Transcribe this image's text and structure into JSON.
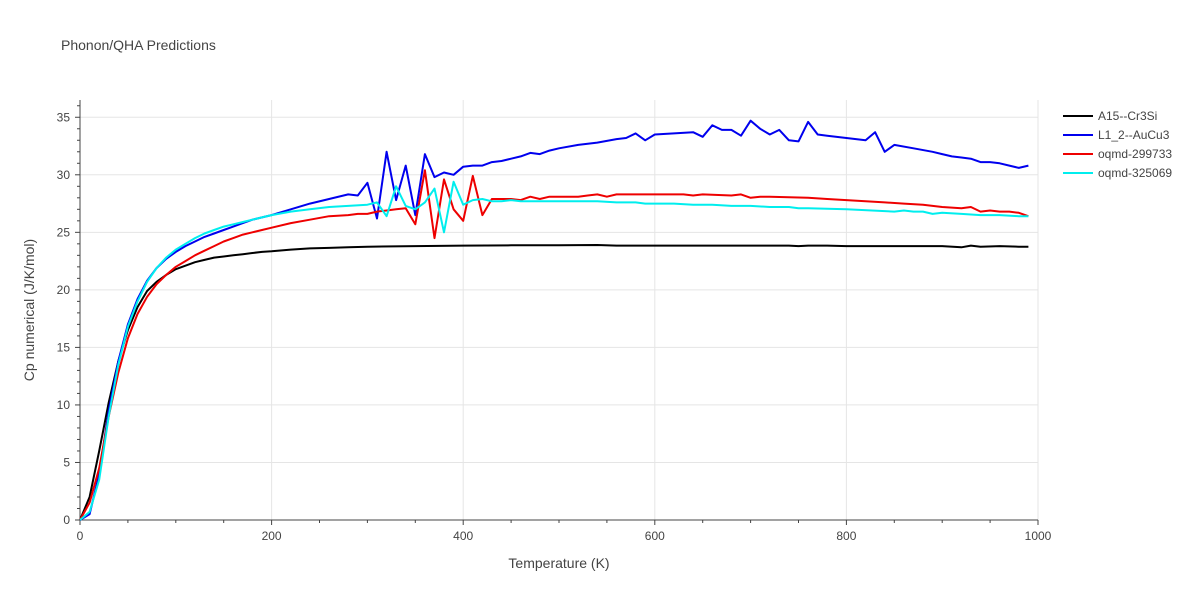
{
  "chart_data": {
    "type": "line",
    "title": "Phonon/QHA Predictions",
    "xlabel": "Temperature (K)",
    "ylabel": "Cp numerical (J/K/mol)",
    "xlim": [
      0,
      1000
    ],
    "ylim": [
      0,
      36.5
    ],
    "xticks": [
      0,
      200,
      400,
      600,
      800,
      1000
    ],
    "xtick_labels": [
      "0",
      "200",
      "400",
      "600",
      "800",
      "1000"
    ],
    "yticks": [
      0,
      5,
      10,
      15,
      20,
      25,
      30,
      35
    ],
    "ytick_labels": [
      "0",
      "5",
      "10",
      "15",
      "20",
      "25",
      "30",
      "35"
    ],
    "grid": true,
    "legend_position": "top-right",
    "series": [
      {
        "name": "A15--Cr3Si",
        "color": "#000000",
        "x": [
          0,
          10,
          20,
          30,
          40,
          50,
          60,
          70,
          80,
          90,
          100,
          110,
          120,
          130,
          140,
          150,
          160,
          170,
          180,
          190,
          200,
          220,
          240,
          260,
          280,
          300,
          350,
          400,
          450,
          500,
          540,
          560,
          600,
          650,
          700,
          720,
          740,
          750,
          760,
          780,
          800,
          850,
          900,
          920,
          930,
          940,
          960,
          980,
          990
        ],
        "y": [
          0,
          2.0,
          6.0,
          10.2,
          13.8,
          16.5,
          18.5,
          19.9,
          20.7,
          21.3,
          21.8,
          22.1,
          22.4,
          22.6,
          22.8,
          22.9,
          23.0,
          23.1,
          23.2,
          23.3,
          23.35,
          23.5,
          23.6,
          23.65,
          23.7,
          23.75,
          23.8,
          23.85,
          23.87,
          23.88,
          23.9,
          23.85,
          23.85,
          23.85,
          23.85,
          23.85,
          23.85,
          23.8,
          23.85,
          23.85,
          23.8,
          23.8,
          23.8,
          23.7,
          23.85,
          23.75,
          23.8,
          23.75,
          23.75
        ]
      },
      {
        "name": "L1_2--AuCu3",
        "color": "#0000ee",
        "x": [
          0,
          10,
          20,
          30,
          40,
          50,
          60,
          70,
          80,
          90,
          100,
          110,
          120,
          130,
          140,
          150,
          160,
          170,
          180,
          190,
          200,
          220,
          240,
          260,
          280,
          290,
          300,
          310,
          320,
          330,
          340,
          350,
          360,
          370,
          380,
          390,
          400,
          410,
          420,
          430,
          440,
          450,
          460,
          470,
          480,
          490,
          500,
          520,
          540,
          560,
          570,
          580,
          590,
          600,
          620,
          640,
          650,
          660,
          670,
          680,
          690,
          700,
          710,
          720,
          730,
          740,
          750,
          760,
          770,
          780,
          820,
          830,
          840,
          850,
          870,
          890,
          900,
          910,
          920,
          930,
          940,
          950,
          960,
          970,
          980,
          990
        ],
        "y": [
          0,
          0.5,
          4.0,
          9.5,
          13.8,
          17.0,
          19.2,
          20.8,
          21.9,
          22.7,
          23.3,
          23.8,
          24.2,
          24.6,
          24.9,
          25.2,
          25.5,
          25.8,
          26.1,
          26.3,
          26.5,
          27.0,
          27.5,
          27.9,
          28.3,
          28.2,
          29.3,
          26.2,
          32.0,
          27.8,
          30.8,
          26.5,
          31.8,
          29.8,
          30.2,
          30.0,
          30.7,
          30.8,
          30.8,
          31.1,
          31.2,
          31.4,
          31.6,
          31.9,
          31.8,
          32.1,
          32.3,
          32.6,
          32.8,
          33.1,
          33.2,
          33.6,
          33.0,
          33.5,
          33.6,
          33.7,
          33.3,
          34.3,
          33.9,
          33.9,
          33.4,
          34.7,
          34.0,
          33.5,
          33.9,
          33.0,
          32.9,
          34.6,
          33.5,
          33.4,
          33.0,
          33.7,
          32.0,
          32.6,
          32.3,
          32.0,
          31.8,
          31.6,
          31.5,
          31.4,
          31.1,
          31.1,
          31.0,
          30.8,
          30.6,
          30.8
        ]
      },
      {
        "name": "oqmd-299733",
        "color": "#ee0000",
        "x": [
          0,
          10,
          20,
          30,
          40,
          50,
          60,
          70,
          80,
          90,
          100,
          110,
          120,
          130,
          140,
          150,
          160,
          170,
          180,
          190,
          200,
          220,
          240,
          260,
          280,
          290,
          300,
          310,
          320,
          330,
          340,
          350,
          360,
          370,
          380,
          390,
          400,
          410,
          420,
          430,
          440,
          450,
          460,
          470,
          480,
          490,
          500,
          520,
          530,
          540,
          550,
          560,
          600,
          620,
          630,
          640,
          650,
          680,
          690,
          700,
          710,
          720,
          760,
          780,
          800,
          820,
          840,
          860,
          880,
          900,
          920,
          930,
          940,
          950,
          960,
          970,
          980,
          990
        ],
        "y": [
          0,
          1.5,
          4.5,
          9.0,
          12.8,
          15.8,
          17.9,
          19.4,
          20.5,
          21.3,
          22.0,
          22.5,
          23.0,
          23.4,
          23.8,
          24.2,
          24.5,
          24.8,
          25.0,
          25.2,
          25.4,
          25.8,
          26.1,
          26.4,
          26.5,
          26.6,
          26.6,
          26.8,
          26.9,
          27.0,
          27.1,
          25.7,
          30.4,
          24.5,
          29.6,
          27.0,
          26.0,
          29.9,
          26.5,
          27.9,
          27.9,
          27.9,
          27.8,
          28.1,
          27.9,
          28.1,
          28.1,
          28.1,
          28.2,
          28.3,
          28.1,
          28.3,
          28.3,
          28.3,
          28.3,
          28.2,
          28.3,
          28.2,
          28.3,
          28.0,
          28.1,
          28.1,
          28.0,
          27.9,
          27.8,
          27.7,
          27.6,
          27.5,
          27.4,
          27.2,
          27.1,
          27.2,
          26.8,
          26.9,
          26.8,
          26.8,
          26.7,
          26.4
        ]
      },
      {
        "name": "oqmd-325069",
        "color": "#00eeee",
        "x": [
          0,
          10,
          20,
          30,
          40,
          50,
          60,
          70,
          80,
          90,
          100,
          110,
          120,
          130,
          140,
          150,
          160,
          170,
          180,
          190,
          200,
          220,
          240,
          260,
          280,
          300,
          310,
          320,
          330,
          340,
          350,
          360,
          370,
          380,
          390,
          400,
          410,
          420,
          430,
          440,
          450,
          460,
          470,
          480,
          490,
          500,
          520,
          540,
          560,
          580,
          590,
          600,
          620,
          640,
          660,
          680,
          700,
          720,
          740,
          750,
          760,
          800,
          850,
          860,
          870,
          880,
          890,
          900,
          920,
          940,
          960,
          980,
          990
        ],
        "y": [
          0,
          0.7,
          3.5,
          9.0,
          13.5,
          16.8,
          19.0,
          20.7,
          21.9,
          22.8,
          23.5,
          24.0,
          24.5,
          24.9,
          25.2,
          25.5,
          25.7,
          25.9,
          26.1,
          26.3,
          26.5,
          26.8,
          27.0,
          27.2,
          27.3,
          27.4,
          27.6,
          26.4,
          29.0,
          27.3,
          27.0,
          27.6,
          28.8,
          25.0,
          29.4,
          27.4,
          27.8,
          27.9,
          27.7,
          27.7,
          27.8,
          27.7,
          27.7,
          27.7,
          27.7,
          27.7,
          27.7,
          27.7,
          27.6,
          27.6,
          27.5,
          27.5,
          27.5,
          27.4,
          27.4,
          27.3,
          27.3,
          27.2,
          27.2,
          27.1,
          27.1,
          27.0,
          26.8,
          26.9,
          26.8,
          26.8,
          26.6,
          26.7,
          26.6,
          26.5,
          26.5,
          26.4,
          26.4
        ]
      }
    ]
  }
}
